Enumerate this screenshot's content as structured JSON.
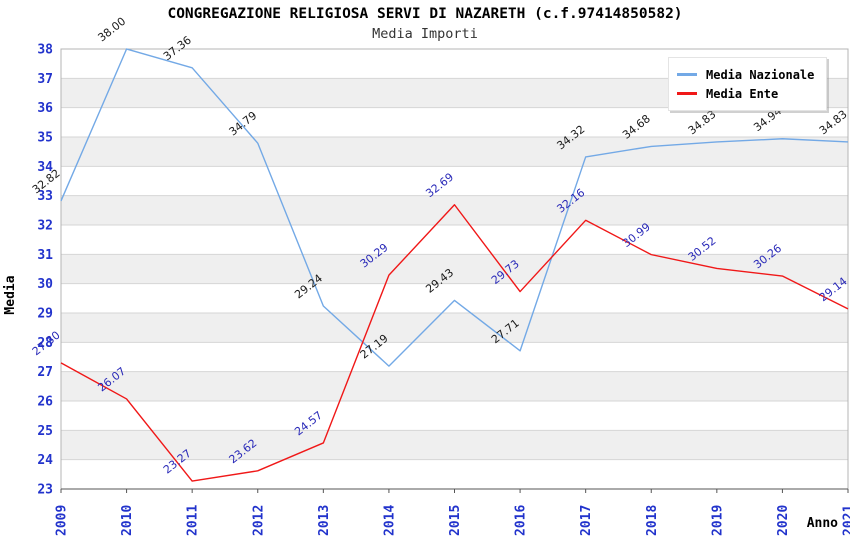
{
  "chart_data": {
    "type": "line",
    "title": "CONGREGAZIONE RELIGIOSA SERVI DI NAZARETH (c.f.97414850582)",
    "subtitle": "Media Importi",
    "xlabel": "Anno",
    "ylabel": "Media",
    "ylim": [
      23,
      38
    ],
    "y_tick_step": 1,
    "grid": true,
    "banded_background": true,
    "legend_position": "top-right",
    "categories": [
      "2009",
      "2010",
      "2011",
      "2012",
      "2013",
      "2014",
      "2015",
      "2016",
      "2017",
      "2018",
      "2019",
      "2020",
      "2021"
    ],
    "series": [
      {
        "name": "Media Nazionale",
        "color": "#73a9e6",
        "label_color": "#1a1a1a",
        "values": [
          32.82,
          38.0,
          37.36,
          34.79,
          29.24,
          27.19,
          29.43,
          27.71,
          34.32,
          34.68,
          34.83,
          34.94,
          34.83
        ]
      },
      {
        "name": "Media Ente",
        "color": "#f01818",
        "label_color": "#2929b8",
        "values": [
          27.3,
          26.07,
          23.27,
          23.62,
          24.57,
          30.29,
          32.69,
          29.73,
          32.16,
          30.99,
          30.52,
          30.26,
          29.14
        ]
      }
    ],
    "colors": {
      "band": "#efefef",
      "grid": "#d6d6d6",
      "frame": "#b4b4b4",
      "axis_line": "#555555",
      "tick_text": "#2233cc"
    }
  }
}
